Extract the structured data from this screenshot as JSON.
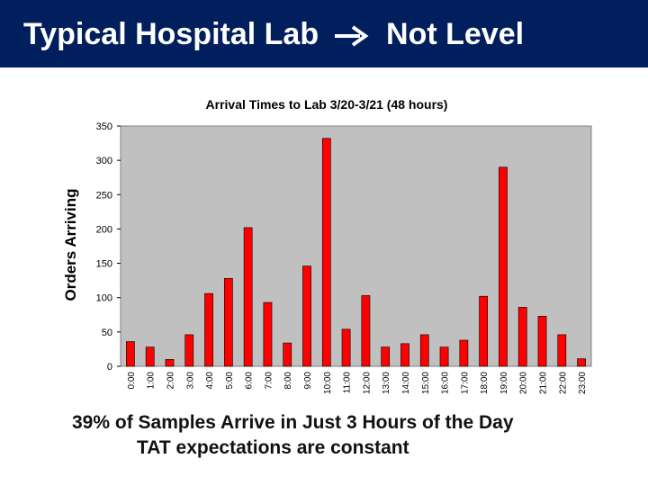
{
  "header": {
    "title_left": "Typical Hospital Lab",
    "arrow": "right-arrow-icon",
    "title_right": "Not Level"
  },
  "colors": {
    "header_bg": "#001f5c",
    "plot_bg": "#c0c0c0",
    "bar": "#ff0000"
  },
  "chart_data": {
    "type": "bar",
    "title": "Arrival Times to Lab 3/20-3/21 (48 hours)",
    "ylabel": "Orders Arriving",
    "xlabel": "",
    "ylim": [
      0,
      350
    ],
    "yticks": [
      0,
      50,
      100,
      150,
      200,
      250,
      300,
      350
    ],
    "grid": false,
    "categories": [
      "0:00",
      "1:00",
      "2:00",
      "3:00",
      "4:00",
      "5:00",
      "6:00",
      "7:00",
      "8:00",
      "9:00",
      "10:00",
      "11:00",
      "12:00",
      "13:00",
      "14:00",
      "15:00",
      "16:00",
      "17:00",
      "18:00",
      "19:00",
      "20:00",
      "21:00",
      "22:00",
      "23:00"
    ],
    "values": [
      36,
      28,
      10,
      46,
      106,
      128,
      202,
      93,
      34,
      146,
      332,
      54,
      103,
      28,
      33,
      46,
      28,
      38,
      102,
      290,
      86,
      73,
      46,
      11
    ]
  },
  "footer": {
    "line1": "39%  of Samples Arrive in Just 3 Hours of the Day",
    "line2": "TAT expectations are constant"
  }
}
